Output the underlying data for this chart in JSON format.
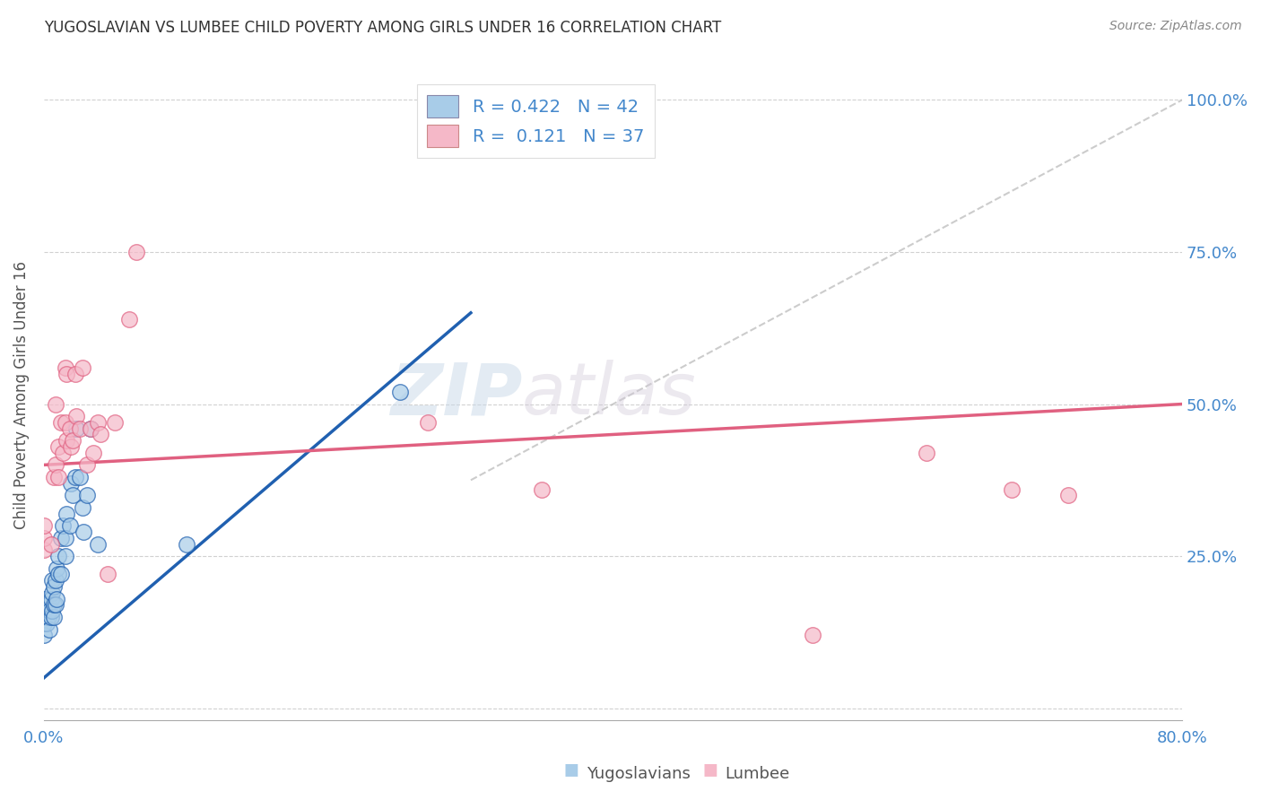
{
  "title": "YUGOSLAVIAN VS LUMBEE CHILD POVERTY AMONG GIRLS UNDER 16 CORRELATION CHART",
  "source": "Source: ZipAtlas.com",
  "ylabel": "Child Poverty Among Girls Under 16",
  "xlim": [
    0.0,
    0.8
  ],
  "ylim": [
    -0.02,
    1.05
  ],
  "xticks": [
    0.0,
    0.1,
    0.2,
    0.3,
    0.4,
    0.5,
    0.6,
    0.7,
    0.8
  ],
  "xticklabels": [
    "0.0%",
    "",
    "",
    "",
    "",
    "",
    "",
    "",
    "80.0%"
  ],
  "yticks": [
    0.0,
    0.25,
    0.5,
    0.75,
    1.0
  ],
  "yticklabels": [
    "",
    "25.0%",
    "50.0%",
    "75.0%",
    "100.0%"
  ],
  "color_yugo": "#a8cce8",
  "color_lumbee": "#f5b8c8",
  "color_diag_line": "#c0c0c0",
  "color_yugo_line": "#2060b0",
  "color_lumbee_line": "#e06080",
  "R_yugo": 0.422,
  "N_yugo": 42,
  "R_lumbee": 0.121,
  "N_lumbee": 37,
  "watermark_zip": "ZIP",
  "watermark_atlas": "atlas",
  "yugo_x": [
    0.0,
    0.0,
    0.0,
    0.0,
    0.002,
    0.003,
    0.003,
    0.004,
    0.004,
    0.005,
    0.005,
    0.006,
    0.006,
    0.006,
    0.007,
    0.007,
    0.007,
    0.008,
    0.008,
    0.009,
    0.009,
    0.01,
    0.01,
    0.012,
    0.012,
    0.013,
    0.015,
    0.015,
    0.016,
    0.018,
    0.019,
    0.02,
    0.022,
    0.023,
    0.025,
    0.027,
    0.028,
    0.03,
    0.033,
    0.038,
    0.1,
    0.25
  ],
  "yugo_y": [
    0.12,
    0.14,
    0.16,
    0.18,
    0.14,
    0.15,
    0.17,
    0.13,
    0.16,
    0.15,
    0.18,
    0.16,
    0.19,
    0.21,
    0.15,
    0.17,
    0.2,
    0.17,
    0.21,
    0.18,
    0.23,
    0.22,
    0.25,
    0.22,
    0.28,
    0.3,
    0.25,
    0.28,
    0.32,
    0.3,
    0.37,
    0.35,
    0.38,
    0.46,
    0.38,
    0.33,
    0.29,
    0.35,
    0.46,
    0.27,
    0.27,
    0.52
  ],
  "lumbee_x": [
    0.0,
    0.0,
    0.0,
    0.005,
    0.007,
    0.008,
    0.008,
    0.01,
    0.01,
    0.012,
    0.013,
    0.015,
    0.015,
    0.016,
    0.016,
    0.018,
    0.019,
    0.02,
    0.022,
    0.023,
    0.025,
    0.027,
    0.03,
    0.033,
    0.035,
    0.038,
    0.04,
    0.045,
    0.05,
    0.06,
    0.065,
    0.27,
    0.35,
    0.54,
    0.62,
    0.68,
    0.72
  ],
  "lumbee_y": [
    0.26,
    0.28,
    0.3,
    0.27,
    0.38,
    0.4,
    0.5,
    0.38,
    0.43,
    0.47,
    0.42,
    0.47,
    0.56,
    0.44,
    0.55,
    0.46,
    0.43,
    0.44,
    0.55,
    0.48,
    0.46,
    0.56,
    0.4,
    0.46,
    0.42,
    0.47,
    0.45,
    0.22,
    0.47,
    0.64,
    0.75,
    0.47,
    0.36,
    0.12,
    0.42,
    0.36,
    0.35
  ],
  "yugo_line_x": [
    0.0,
    0.3
  ],
  "yugo_line_y": [
    0.05,
    0.65
  ],
  "lumbee_line_x": [
    0.0,
    0.8
  ],
  "lumbee_line_y": [
    0.4,
    0.5
  ],
  "diag_line_x": [
    0.3,
    0.8
  ],
  "diag_line_y": [
    0.375,
    1.0
  ]
}
